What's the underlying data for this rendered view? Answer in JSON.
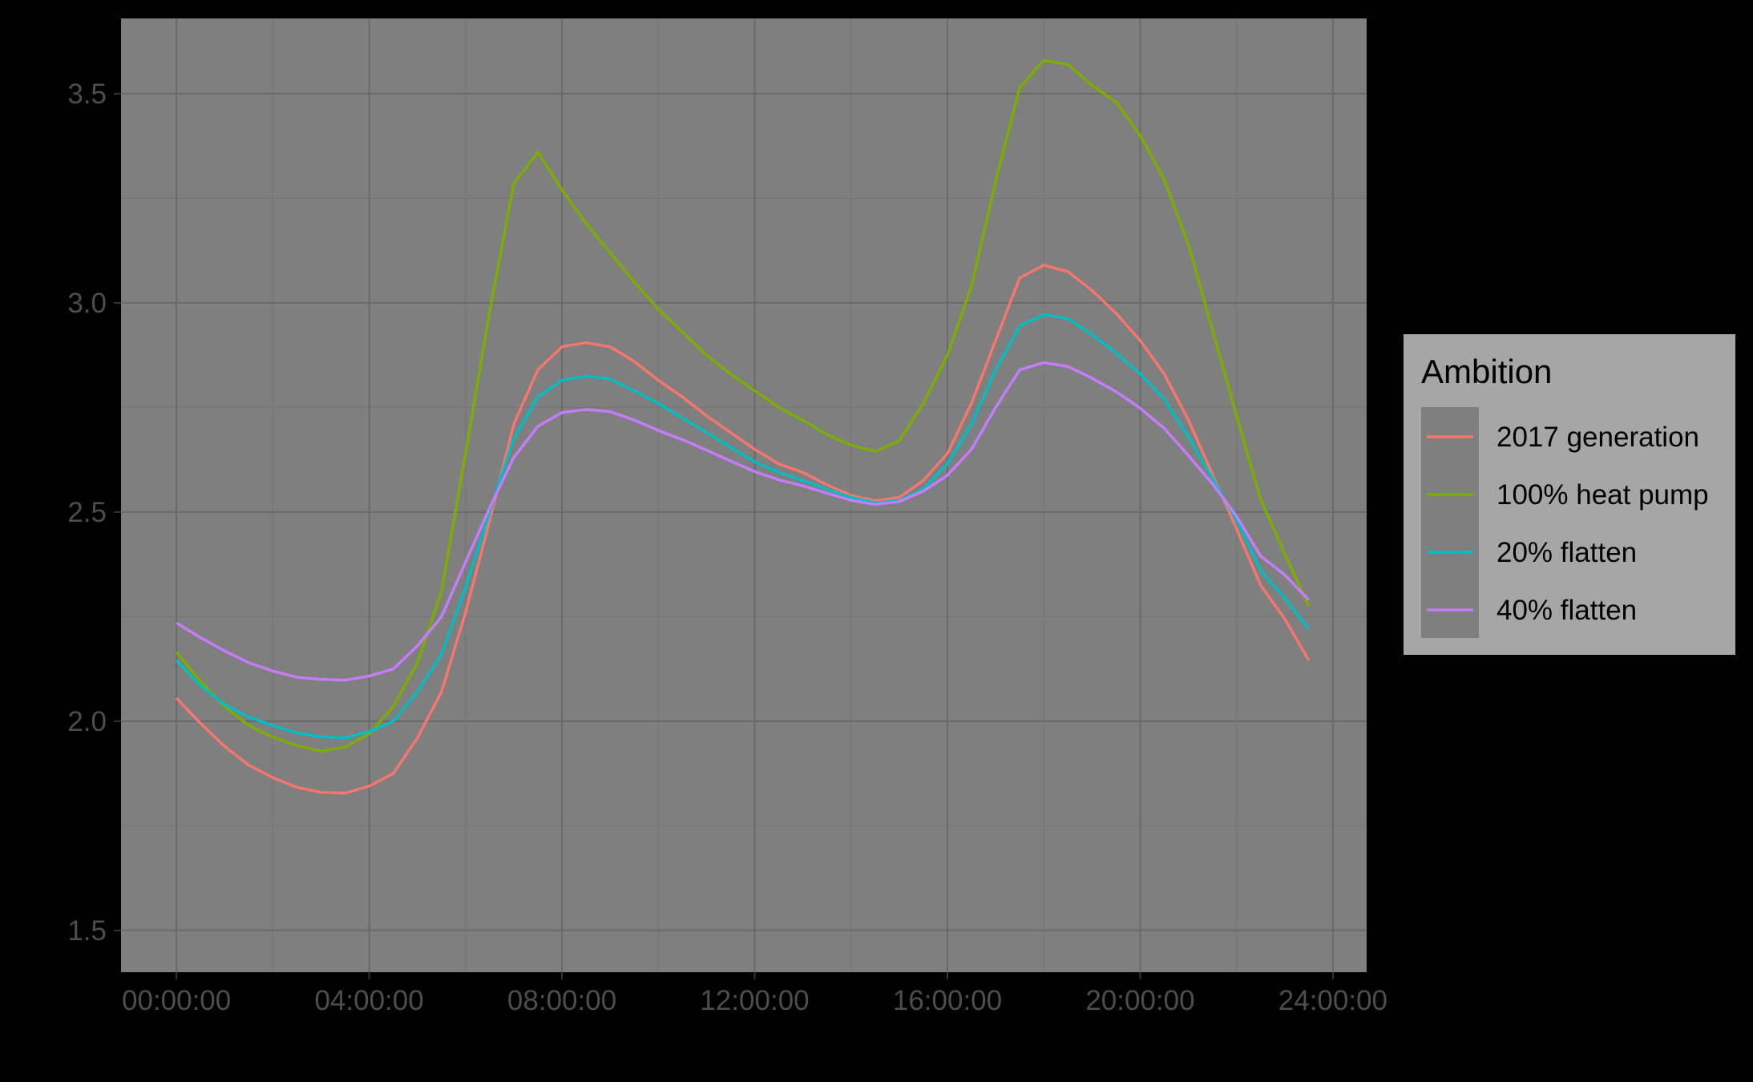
{
  "chart_data": {
    "type": "line",
    "title": "",
    "xlabel": "",
    "ylabel": "",
    "x_tick_labels": [
      "00:00:00",
      "04:00:00",
      "08:00:00",
      "12:00:00",
      "16:00:00",
      "20:00:00",
      "24:00:00"
    ],
    "y_tick_labels": [
      "1.5",
      "2.0",
      "2.5",
      "3.0",
      "3.5"
    ],
    "xlim_hours": [
      -1.15,
      24.7
    ],
    "ylim": [
      1.4,
      3.68
    ],
    "grid": true,
    "legend": {
      "title": "Ambition",
      "position": "right"
    },
    "x_hours": [
      0,
      0.5,
      1,
      1.5,
      2,
      2.5,
      3,
      3.5,
      4,
      4.5,
      5,
      5.5,
      6,
      6.5,
      7,
      7.5,
      8,
      8.5,
      9,
      9.5,
      10,
      10.5,
      11,
      11.5,
      12,
      12.5,
      13,
      13.5,
      14,
      14.5,
      15,
      15.5,
      16,
      16.5,
      17,
      17.5,
      18,
      18.5,
      19,
      19.5,
      20,
      20.5,
      21,
      21.5,
      22,
      22.5,
      23,
      23.5
    ],
    "series": [
      {
        "name": "2017 generation",
        "color": "#F8766D",
        "values": [
          2.055,
          1.995,
          1.94,
          1.895,
          1.865,
          1.842,
          1.83,
          1.828,
          1.845,
          1.875,
          1.96,
          2.07,
          2.26,
          2.48,
          2.71,
          2.84,
          2.895,
          2.905,
          2.895,
          2.86,
          2.815,
          2.775,
          2.73,
          2.69,
          2.65,
          2.615,
          2.595,
          2.565,
          2.54,
          2.527,
          2.535,
          2.575,
          2.64,
          2.76,
          2.91,
          3.06,
          3.09,
          3.075,
          3.03,
          2.975,
          2.91,
          2.83,
          2.72,
          2.59,
          2.46,
          2.325,
          2.245,
          2.145
        ]
      },
      {
        "name": "100% heat pump",
        "color": "#7CAE00",
        "values": [
          2.165,
          2.095,
          2.035,
          1.99,
          1.962,
          1.942,
          1.928,
          1.938,
          1.97,
          2.035,
          2.14,
          2.31,
          2.64,
          2.98,
          3.285,
          3.36,
          3.27,
          3.19,
          3.12,
          3.05,
          2.985,
          2.93,
          2.875,
          2.83,
          2.79,
          2.75,
          2.72,
          2.685,
          2.66,
          2.645,
          2.67,
          2.76,
          2.875,
          3.04,
          3.29,
          3.515,
          3.58,
          3.57,
          3.52,
          3.48,
          3.4,
          3.295,
          3.14,
          2.935,
          2.73,
          2.53,
          2.4,
          2.275
        ]
      },
      {
        "name": "20% flatten",
        "color": "#00BFC4",
        "values": [
          2.145,
          2.085,
          2.04,
          2.01,
          1.99,
          1.972,
          1.963,
          1.96,
          1.975,
          2.0,
          2.07,
          2.16,
          2.32,
          2.5,
          2.675,
          2.775,
          2.815,
          2.825,
          2.818,
          2.79,
          2.76,
          2.725,
          2.69,
          2.655,
          2.62,
          2.595,
          2.575,
          2.555,
          2.535,
          2.522,
          2.527,
          2.555,
          2.615,
          2.71,
          2.84,
          2.945,
          2.972,
          2.962,
          2.925,
          2.88,
          2.83,
          2.77,
          2.68,
          2.58,
          2.48,
          2.36,
          2.295,
          2.22
        ]
      },
      {
        "name": "40% flatten",
        "color": "#C77CFF",
        "values": [
          2.235,
          2.2,
          2.168,
          2.14,
          2.12,
          2.105,
          2.1,
          2.098,
          2.108,
          2.125,
          2.18,
          2.25,
          2.38,
          2.51,
          2.63,
          2.705,
          2.738,
          2.745,
          2.74,
          2.72,
          2.695,
          2.673,
          2.648,
          2.622,
          2.597,
          2.577,
          2.563,
          2.545,
          2.528,
          2.518,
          2.525,
          2.55,
          2.588,
          2.65,
          2.75,
          2.84,
          2.857,
          2.848,
          2.82,
          2.788,
          2.748,
          2.7,
          2.635,
          2.568,
          2.49,
          2.395,
          2.35,
          2.29
        ]
      }
    ]
  }
}
